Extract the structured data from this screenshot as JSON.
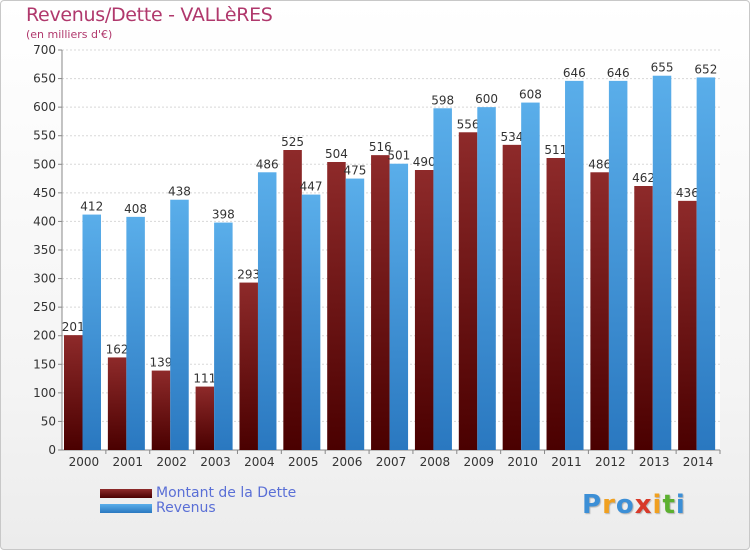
{
  "header": {
    "title": "Revenus/Dette - VALLèRES",
    "subtitle": "(en milliers d'€)"
  },
  "chart_data": {
    "type": "bar",
    "title": "Revenus/Dette - VALLèRES",
    "subtitle": "(en milliers d'€)",
    "categories": [
      "2000",
      "2001",
      "2002",
      "2003",
      "2004",
      "2005",
      "2006",
      "2007",
      "2008",
      "2009",
      "2010",
      "2011",
      "2012",
      "2013",
      "2014"
    ],
    "series": [
      {
        "name": "Montant de la Dette",
        "color": "#8b1c1c",
        "values": [
          201,
          162,
          139,
          111,
          293,
          525,
          504,
          516,
          490,
          556,
          534,
          511,
          486,
          462,
          436
        ]
      },
      {
        "name": "Revenus",
        "color": "#3f9be0",
        "values": [
          412,
          408,
          438,
          398,
          486,
          447,
          475,
          501,
          598,
          600,
          608,
          646,
          646,
          655,
          652
        ]
      }
    ],
    "ylim": [
      0,
      700
    ],
    "yticks": [
      0,
      50,
      100,
      150,
      200,
      250,
      300,
      350,
      400,
      450,
      500,
      550,
      600,
      650,
      700
    ],
    "grid": true,
    "legend_position": "bottom-left"
  },
  "legend": {
    "items": [
      {
        "label": "Montant de la Dette",
        "color": "#6e1010"
      },
      {
        "label": "Revenus",
        "color": "#3f9be0"
      }
    ]
  },
  "logo": {
    "letters": [
      "P",
      "r",
      "o",
      "x",
      "i",
      "t",
      "i"
    ],
    "colors": [
      "#3c8fd6",
      "#f0a020",
      "#3c8fd6",
      "#d83a2a",
      "#f0a020",
      "#5cb030",
      "#3c8fd6"
    ]
  }
}
